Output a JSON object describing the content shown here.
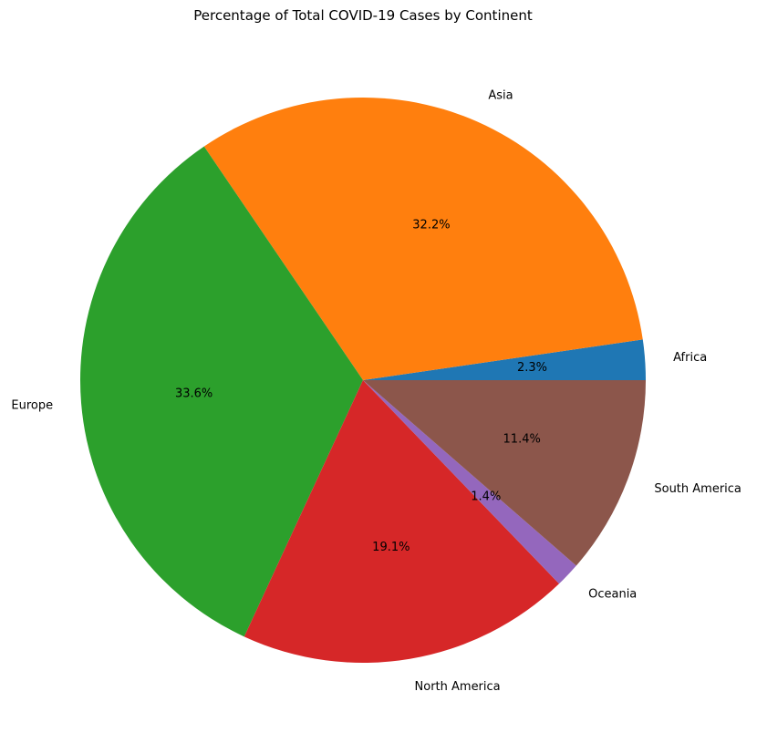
{
  "chart_data": {
    "type": "pie",
    "title": "Percentage of Total COVID-19 Cases by Continent",
    "start_angle_deg": 0,
    "direction": "counterclockwise",
    "slices": [
      {
        "label": "Africa",
        "value": 2.3,
        "pct_text": "2.3%",
        "color": "#1f77b4"
      },
      {
        "label": "Asia",
        "value": 32.2,
        "pct_text": "32.2%",
        "color": "#ff7f0e"
      },
      {
        "label": "Europe",
        "value": 33.6,
        "pct_text": "33.6%",
        "color": "#2ca02c"
      },
      {
        "label": "North America",
        "value": 19.1,
        "pct_text": "19.1%",
        "color": "#d62728"
      },
      {
        "label": "Oceania",
        "value": 1.4,
        "pct_text": "1.4%",
        "color": "#9467bd"
      },
      {
        "label": "South America",
        "value": 11.4,
        "pct_text": "11.4%",
        "color": "#8c564b"
      }
    ]
  }
}
